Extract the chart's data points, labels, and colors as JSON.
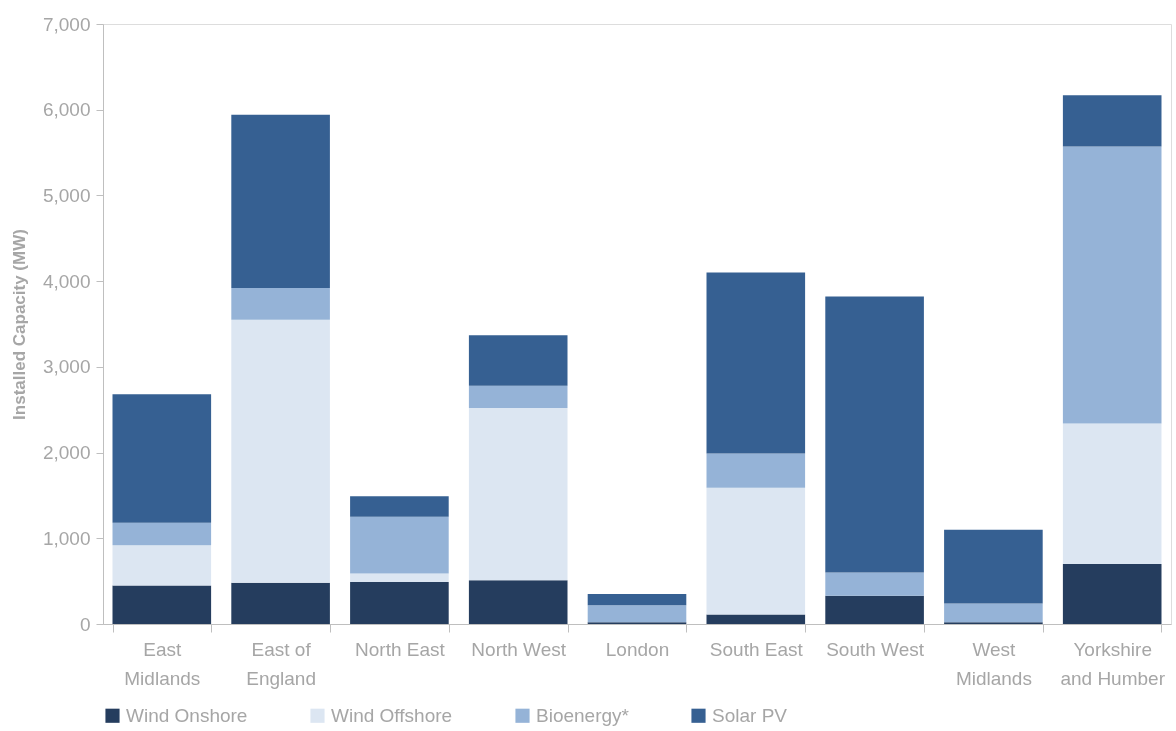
{
  "chart_data": {
    "type": "bar",
    "stacked": true,
    "ylabel": "Installed Capacity (MW)",
    "categories": [
      "East Midlands",
      "East of England",
      "North East",
      "North West",
      "London",
      "South East",
      "South West",
      "West Midlands",
      "Yorkshire and Humber"
    ],
    "series": [
      {
        "name": "Wind Onshore",
        "color": "#253d5e",
        "values": [
          450,
          480,
          490,
          510,
          20,
          110,
          330,
          20,
          700
        ]
      },
      {
        "name": "Wind Offshore",
        "color": "#dce6f2",
        "values": [
          470,
          3070,
          100,
          2010,
          0,
          1480,
          0,
          0,
          1640
        ]
      },
      {
        "name": "Bioenergy*",
        "color": "#95b3d7",
        "values": [
          260,
          370,
          660,
          260,
          200,
          400,
          270,
          220,
          3230
        ]
      },
      {
        "name": "Solar PV",
        "color": "#366092",
        "values": [
          1500,
          2020,
          240,
          590,
          130,
          2110,
          3220,
          860,
          600
        ]
      }
    ],
    "ylim": [
      0,
      7000
    ],
    "yticks": [
      0,
      {
        "value": 1000,
        "label": "1,000"
      },
      {
        "value": 2000,
        "label": "2,000"
      },
      {
        "value": 3000,
        "label": "3,000"
      },
      {
        "value": 4000,
        "label": "4,000"
      },
      {
        "value": 5000,
        "label": "5,000"
      },
      {
        "value": 6000,
        "label": "6,000"
      },
      {
        "value": 7000,
        "label": "7,000"
      }
    ],
    "grid": false,
    "legend": "bottom"
  }
}
